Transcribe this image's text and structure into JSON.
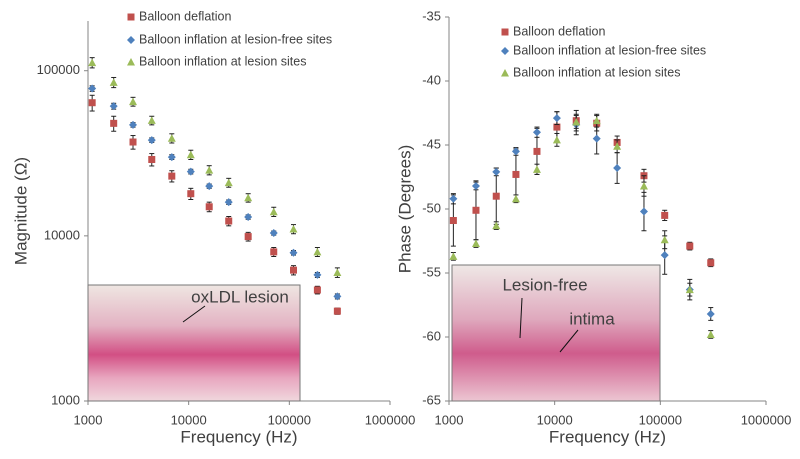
{
  "chart_data": [
    {
      "type": "scatter",
      "x_label": "Frequency (Hz)",
      "y_label": "Magnitude (Ω)",
      "x": [
        1100,
        1800,
        2800,
        4300,
        6800,
        10500,
        16000,
        25000,
        39000,
        70000,
        110000,
        190000,
        300000
      ],
      "xlim": [
        1000,
        1000000
      ],
      "xticks": [
        1000,
        10000,
        100000,
        1000000
      ],
      "x_log": true,
      "ylim": [
        1000,
        200000
      ],
      "yticks": [
        1000,
        10000,
        100000
      ],
      "y_log": true,
      "series": [
        {
          "name": "Balloon deflation",
          "color": "#c0504d",
          "marker": "square",
          "values": [
            64000,
            48000,
            37000,
            29000,
            23000,
            18000,
            15000,
            12300,
            9900,
            8000,
            6200,
            4700,
            3500
          ],
          "errors": [
            7000,
            5000,
            3500,
            2500,
            1800,
            1400,
            1000,
            800,
            600,
            500,
            400,
            250,
            150
          ]
        },
        {
          "name": "Balloon inflation at lesion-free sites",
          "color": "#4f81bd",
          "marker": "diamond",
          "values": [
            78000,
            61000,
            47000,
            38000,
            30000,
            24500,
            20000,
            16000,
            13000,
            10400,
            7900,
            5800,
            4300
          ],
          "errors": [
            3000,
            2500,
            1500,
            1200,
            1000,
            800,
            600,
            500,
            400,
            300,
            250,
            200,
            150
          ]
        },
        {
          "name": "Balloon inflation at lesion sites",
          "color": "#9bbb59",
          "marker": "triangle",
          "values": [
            112000,
            85000,
            65000,
            50000,
            39000,
            31000,
            25000,
            21000,
            17000,
            14000,
            11000,
            8000,
            6000
          ],
          "errors": [
            8000,
            6000,
            4000,
            3000,
            2500,
            2000,
            1600,
            1300,
            1000,
            900,
            700,
            500,
            400
          ]
        }
      ],
      "annotations": [
        "oxLDL lesion"
      ]
    },
    {
      "type": "scatter",
      "x_label": "Frequency (Hz)",
      "y_label": "Phase (Degrees)",
      "x": [
        1100,
        1800,
        2800,
        4300,
        6800,
        10500,
        16000,
        25000,
        39000,
        70000,
        110000,
        190000,
        300000
      ],
      "xlim": [
        1000,
        1000000
      ],
      "xticks": [
        1000,
        10000,
        100000,
        1000000
      ],
      "x_log": true,
      "ylim": [
        -65,
        -35
      ],
      "yticks": [
        -65,
        -60,
        -55,
        -50,
        -45,
        -40,
        -35
      ],
      "y_log": false,
      "series": [
        {
          "name": "Balloon deflation",
          "color": "#c0504d",
          "marker": "square",
          "values": [
            -50.9,
            -50.1,
            -49,
            -47.3,
            -45.5,
            -43.6,
            -43.1,
            -43.3,
            -44.8,
            -47.4,
            -50.5,
            -52.9,
            -54.2
          ],
          "errors": [
            2,
            2.3,
            2.2,
            2,
            1.8,
            1.2,
            0.8,
            0.6,
            0.5,
            0.5,
            0.4,
            0.3,
            0.3
          ]
        },
        {
          "name": "Balloon inflation at lesion-free sites",
          "color": "#4f81bd",
          "marker": "diamond",
          "values": [
            -49.2,
            -48.2,
            -47.1,
            -45.5,
            -44,
            -42.9,
            -43.4,
            -44.5,
            -46.8,
            -50.2,
            -53.6,
            -56.3,
            -58.2
          ],
          "errors": [
            0.4,
            0.3,
            0.3,
            0.3,
            0.4,
            0.5,
            0.8,
            1.2,
            1.2,
            1.5,
            1.5,
            0.8,
            0.5
          ]
        },
        {
          "name": "Balloon inflation at lesion sites",
          "color": "#9bbb59",
          "marker": "triangle",
          "values": [
            -53.7,
            -52.7,
            -51.3,
            -49.2,
            -46.9,
            -44.6,
            -43.2,
            -43.1,
            -45.1,
            -48.2,
            -52.4,
            -56.3,
            -59.8
          ],
          "errors": [
            0.3,
            0.3,
            0.3,
            0.3,
            0.4,
            0.5,
            0.5,
            0.5,
            0.5,
            0.8,
            0.7,
            0.5,
            0.3
          ]
        }
      ],
      "annotations": [
        "Lesion-free",
        "intima"
      ]
    }
  ]
}
